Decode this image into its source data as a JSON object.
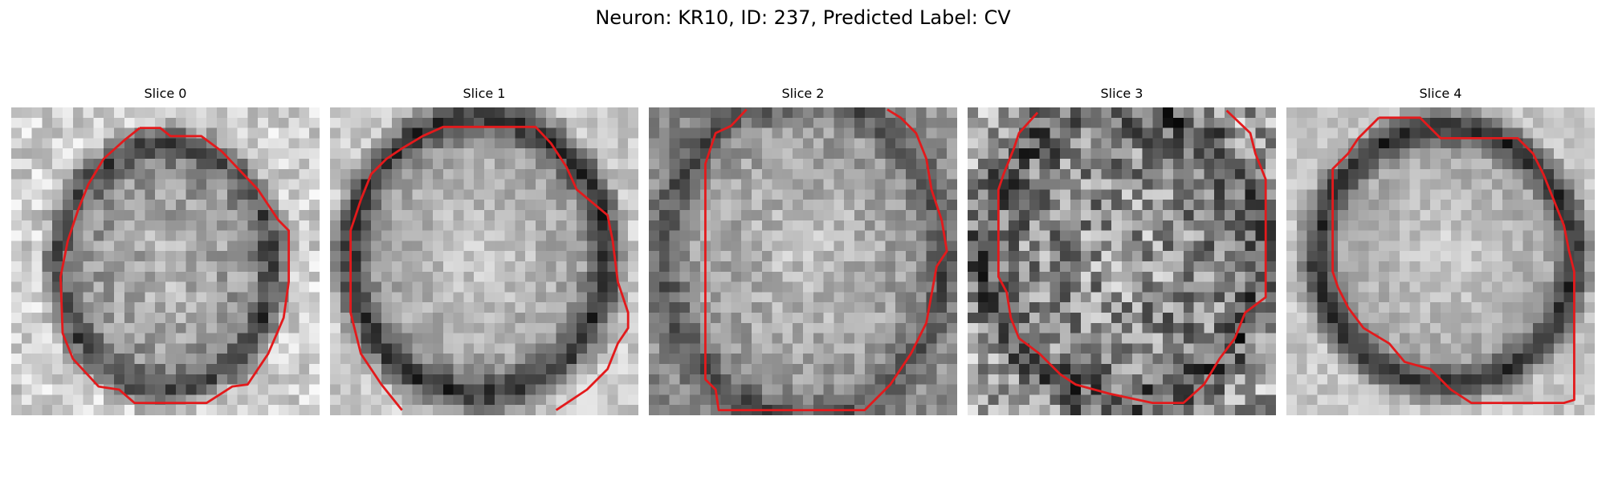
{
  "figure": {
    "title": "Neuron: KR10, ID: 237, Predicted Label: CV"
  },
  "colors": {
    "contour": "#e31a1c",
    "background": "#ffffff"
  },
  "panels": [
    {
      "title": "Slice 0"
    },
    {
      "title": "Slice 1"
    },
    {
      "title": "Slice 2"
    },
    {
      "title": "Slice 3"
    },
    {
      "title": "Slice 4"
    }
  ]
}
